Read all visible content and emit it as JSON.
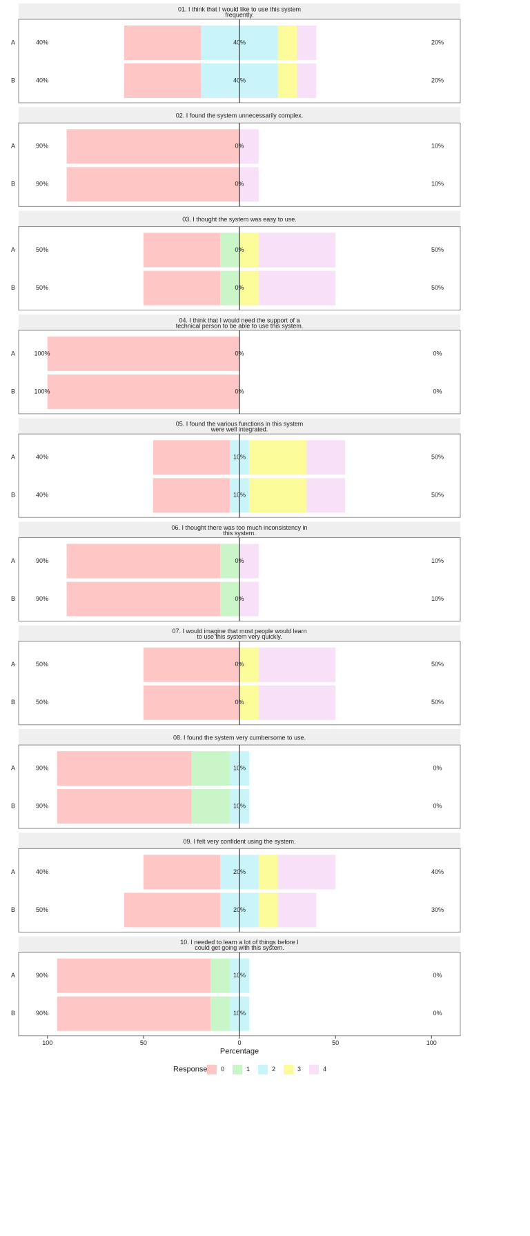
{
  "chart_data": {
    "type": "likert",
    "xlabel": "Percentage",
    "xlim": [
      -115,
      115
    ],
    "xticks": [
      {
        "value": -100,
        "label": "100"
      },
      {
        "value": -50,
        "label": "50"
      },
      0,
      50,
      100
    ],
    "legend_title": "Response",
    "series": [
      {
        "name": "0",
        "color": "#ffc6c6"
      },
      {
        "name": "1",
        "color": "#c9f5c9"
      },
      {
        "name": "2",
        "color": "#c8f4fa"
      },
      {
        "name": "3",
        "color": "#fbfb9a"
      },
      {
        "name": "4",
        "color": "#f8e0f8"
      }
    ],
    "panels": [
      {
        "title": [
          "01. I think that I would like to use this system",
          "frequently."
        ],
        "categories": [
          "A",
          "B"
        ],
        "values": [
          [
            40,
            0,
            40,
            10,
            10
          ],
          [
            40,
            0,
            40,
            10,
            10
          ]
        ],
        "value_labels": [
          [
            "40%",
            "40%",
            "20%"
          ],
          [
            "40%",
            "40%",
            "20%"
          ]
        ]
      },
      {
        "title": [
          "02. I found the system unnecessarily complex."
        ],
        "categories": [
          "A",
          "B"
        ],
        "values": [
          [
            90,
            0,
            0,
            0,
            10
          ],
          [
            90,
            0,
            0,
            0,
            10
          ]
        ],
        "value_labels": [
          [
            "90%",
            "0%",
            "10%"
          ],
          [
            "90%",
            "0%",
            "10%"
          ]
        ]
      },
      {
        "title": [
          "03. I thought the system was easy to use."
        ],
        "categories": [
          "A",
          "B"
        ],
        "values": [
          [
            40,
            10,
            0,
            10,
            40
          ],
          [
            40,
            10,
            0,
            10,
            40
          ]
        ],
        "value_labels": [
          [
            "50%",
            "0%",
            "50%"
          ],
          [
            "50%",
            "0%",
            "50%"
          ]
        ]
      },
      {
        "title": [
          "04. I think that I would need the support of a",
          "technical person to be able to use this system."
        ],
        "categories": [
          "A",
          "B"
        ],
        "values": [
          [
            100,
            0,
            0,
            0,
            0
          ],
          [
            100,
            0,
            0,
            0,
            0
          ]
        ],
        "value_labels": [
          [
            "100%",
            "0%",
            "0%"
          ],
          [
            "100%",
            "0%",
            "0%"
          ]
        ]
      },
      {
        "title": [
          "05. I found the various functions in this system",
          "were well integrated."
        ],
        "categories": [
          "A",
          "B"
        ],
        "values": [
          [
            40,
            0,
            10,
            30,
            20
          ],
          [
            40,
            0,
            10,
            30,
            20
          ]
        ],
        "value_labels": [
          [
            "40%",
            "10%",
            "50%"
          ],
          [
            "40%",
            "10%",
            "50%"
          ]
        ]
      },
      {
        "title": [
          "06. I thought there was too much inconsistency in",
          "this system."
        ],
        "categories": [
          "A",
          "B"
        ],
        "values": [
          [
            80,
            10,
            0,
            0,
            10
          ],
          [
            80,
            10,
            0,
            0,
            10
          ]
        ],
        "value_labels": [
          [
            "90%",
            "0%",
            "10%"
          ],
          [
            "90%",
            "0%",
            "10%"
          ]
        ]
      },
      {
        "title": [
          "07. I would imagine that most people would learn",
          "to use this system very quickly."
        ],
        "categories": [
          "A",
          "B"
        ],
        "values": [
          [
            50,
            0,
            0,
            10,
            40
          ],
          [
            50,
            0,
            0,
            10,
            40
          ]
        ],
        "value_labels": [
          [
            "50%",
            "0%",
            "50%"
          ],
          [
            "50%",
            "0%",
            "50%"
          ]
        ]
      },
      {
        "title": [
          "08. I found the system very cumbersome to use."
        ],
        "categories": [
          "A",
          "B"
        ],
        "values": [
          [
            70,
            20,
            10,
            0,
            0
          ],
          [
            70,
            20,
            10,
            0,
            0
          ]
        ],
        "value_labels": [
          [
            "90%",
            "10%",
            "0%"
          ],
          [
            "90%",
            "10%",
            "0%"
          ]
        ]
      },
      {
        "title": [
          "09. I felt very confident using the system."
        ],
        "categories": [
          "A",
          "B"
        ],
        "values": [
          [
            40,
            0,
            20,
            10,
            30
          ],
          [
            50,
            0,
            20,
            10,
            20
          ]
        ],
        "value_labels": [
          [
            "40%",
            "20%",
            "40%"
          ],
          [
            "50%",
            "20%",
            "30%"
          ]
        ]
      },
      {
        "title": [
          "10. I needed to learn a lot of things before I",
          "could get going with this system."
        ],
        "categories": [
          "A",
          "B"
        ],
        "values": [
          [
            80,
            10,
            10,
            0,
            0
          ],
          [
            80,
            10,
            10,
            0,
            0
          ]
        ],
        "value_labels": [
          [
            "90%",
            "10%",
            "0%"
          ],
          [
            "90%",
            "10%",
            "0%"
          ]
        ]
      }
    ]
  }
}
